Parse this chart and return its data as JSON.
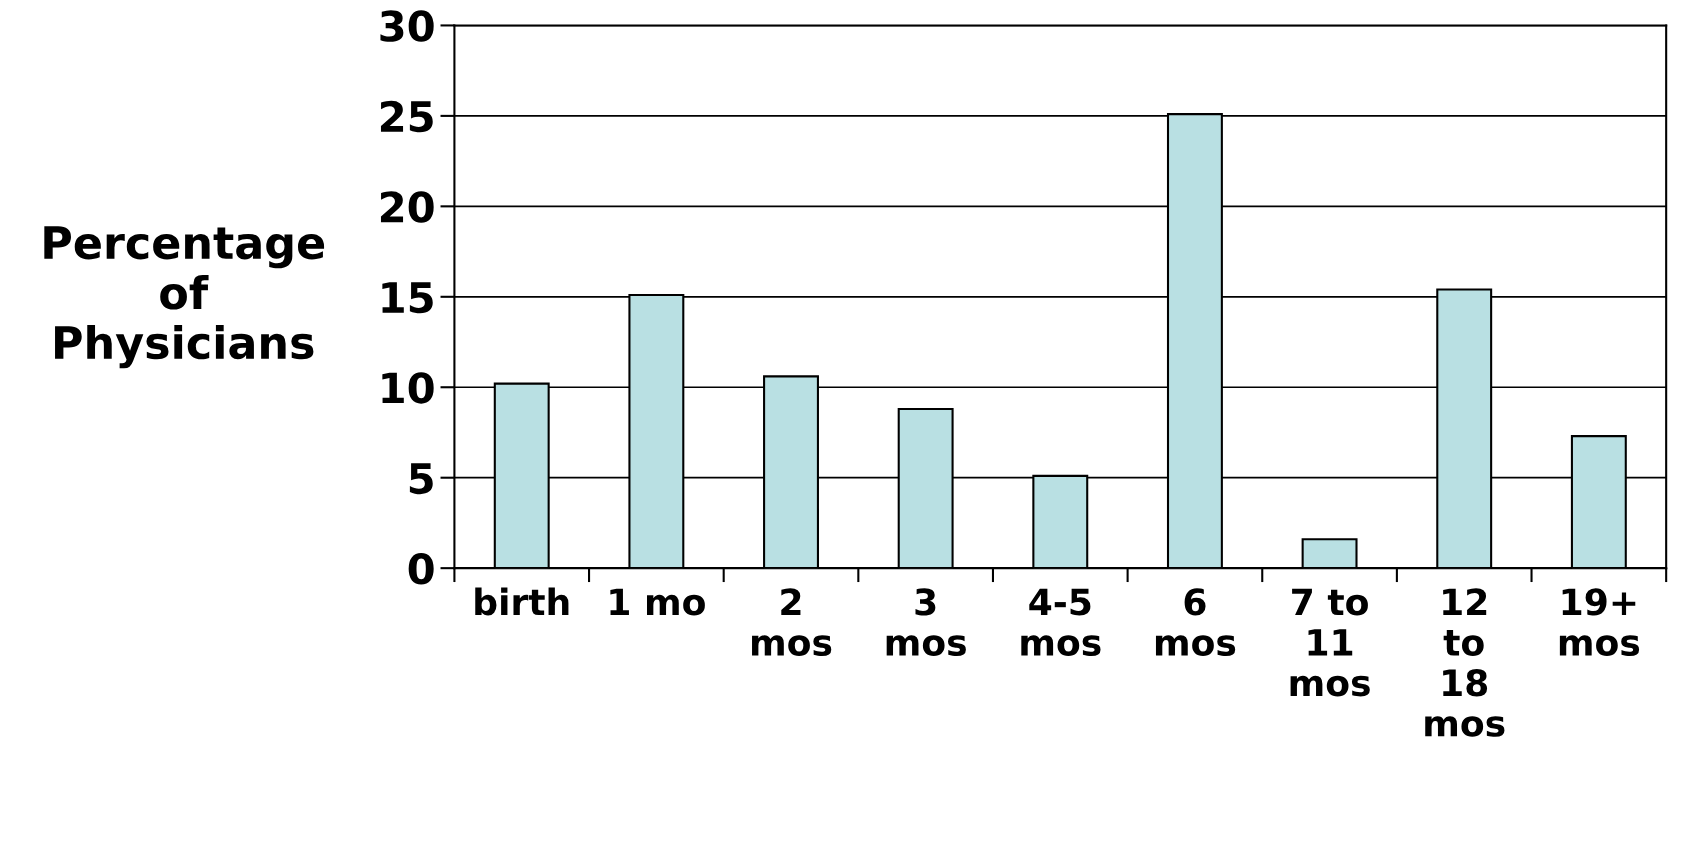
{
  "chart_data": {
    "type": "bar",
    "ylabel": "Percentage\nof\nPhysicians",
    "categories": [
      "birth",
      "1 mo",
      "2\nmos",
      "3\nmos",
      "4-5\nmos",
      "6\nmos",
      "7 to\n11\nmos",
      "12\nto\n18\nmos",
      "19+\nmos"
    ],
    "values": [
      10.2,
      15.1,
      10.6,
      8.8,
      5.1,
      25.1,
      1.6,
      15.4,
      7.3
    ],
    "color": "#b9e0e3",
    "ylim": [
      0,
      30
    ],
    "yticks": [
      0,
      5,
      10,
      15,
      20,
      25,
      30
    ],
    "grid": "y"
  }
}
